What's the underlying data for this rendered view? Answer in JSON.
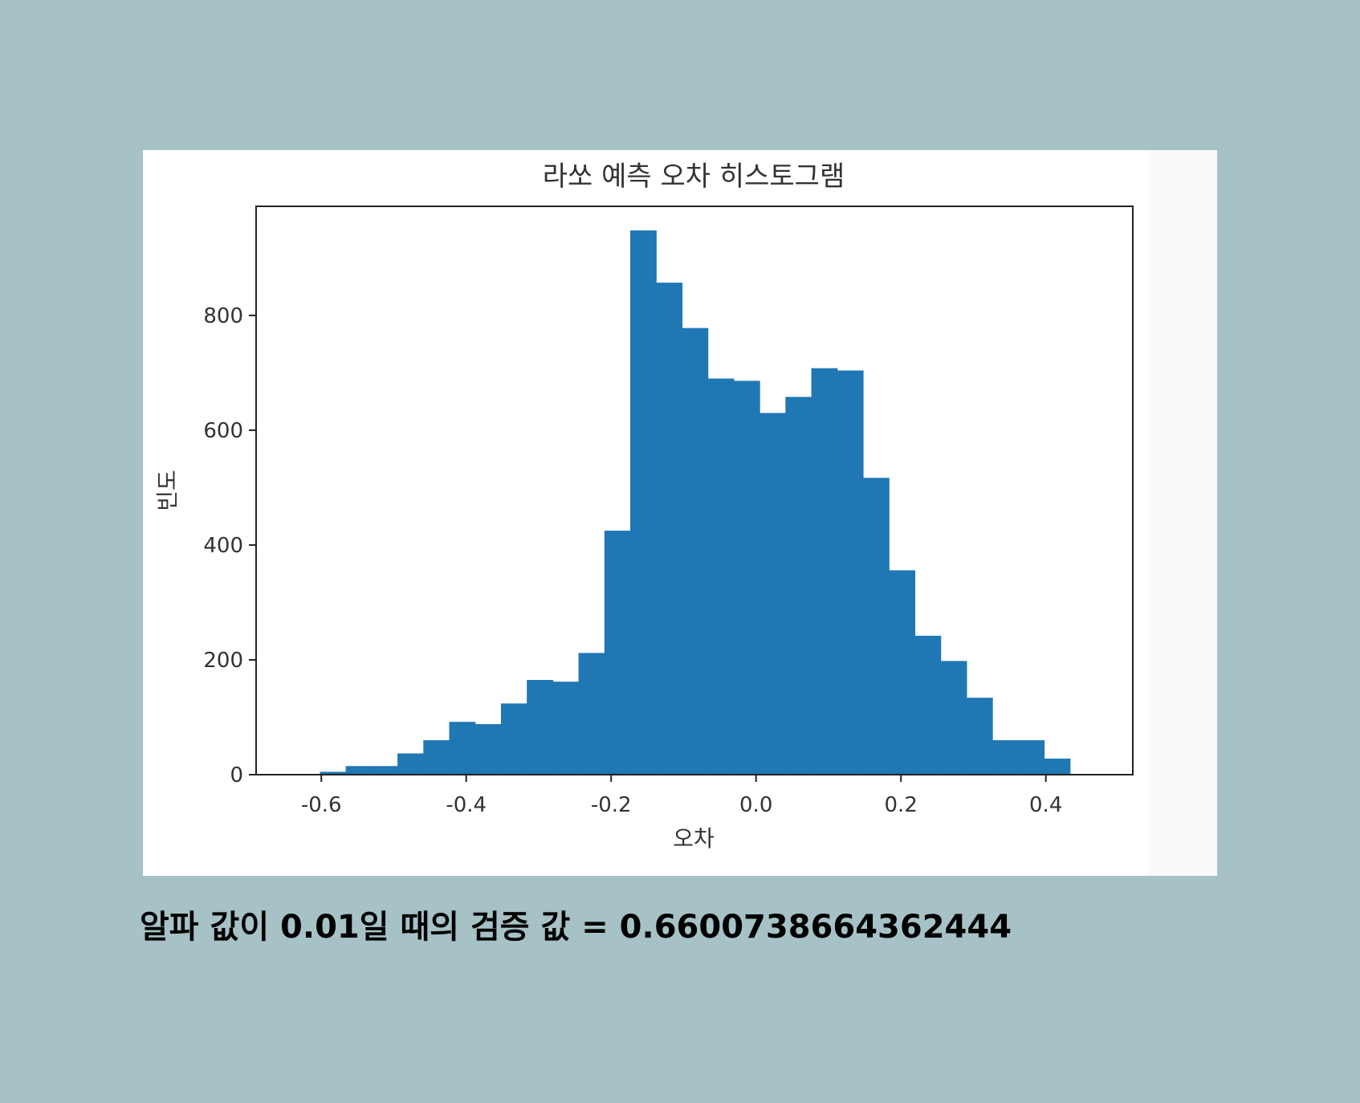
{
  "caption": {
    "text": "알파 값이 0.01일 때의 검증 값 = 0.6600738664362444"
  },
  "chart_data": {
    "type": "bar",
    "title": "라쏘 예측 오차 히스토그램",
    "xlabel": "오차",
    "ylabel": "빈도",
    "bar_color": "#1f77b4",
    "xlim": [
      -0.69,
      0.52
    ],
    "ylim": [
      0,
      990
    ],
    "xticks": [
      -0.6,
      -0.4,
      -0.2,
      0.0,
      0.2,
      0.4
    ],
    "xtick_labels": [
      "-0.6",
      "-0.4",
      "-0.2",
      "0.0",
      "0.2",
      "0.4"
    ],
    "yticks": [
      0,
      200,
      400,
      600,
      800
    ],
    "ytick_labels": [
      "0",
      "200",
      "400",
      "600",
      "800"
    ],
    "bin_start": -0.602,
    "bin_width": 0.0357,
    "values": [
      5,
      15,
      15,
      37,
      60,
      92,
      88,
      124,
      165,
      162,
      212,
      425,
      948,
      857,
      778,
      690,
      686,
      630,
      658,
      708,
      704,
      517,
      356,
      242,
      198,
      134,
      60,
      60,
      28
    ],
    "grid": false
  }
}
